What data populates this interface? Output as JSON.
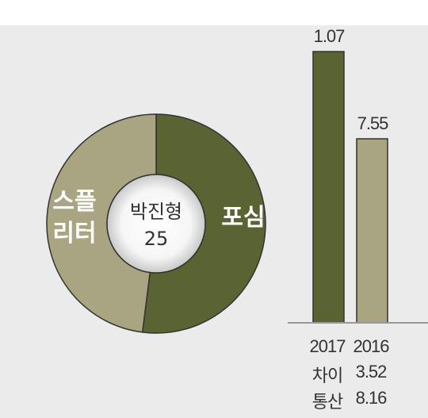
{
  "chart_data": {
    "type": "pie",
    "categories": [
      "포심",
      "스플리터"
    ],
    "values": [
      52,
      48
    ],
    "colors": [
      "#5a6432",
      "#a9a582"
    ],
    "center_label": "박진형",
    "center_value": 25
  },
  "panel": {
    "columns": [
      {
        "year": "2017",
        "label": "1.07",
        "color": "#5a6432"
      },
      {
        "year": "2016",
        "label": "7.55",
        "color": "#a9a582"
      }
    ],
    "rows": [
      [
        "차이",
        "3.52"
      ],
      [
        "통산",
        "8.16"
      ]
    ]
  }
}
